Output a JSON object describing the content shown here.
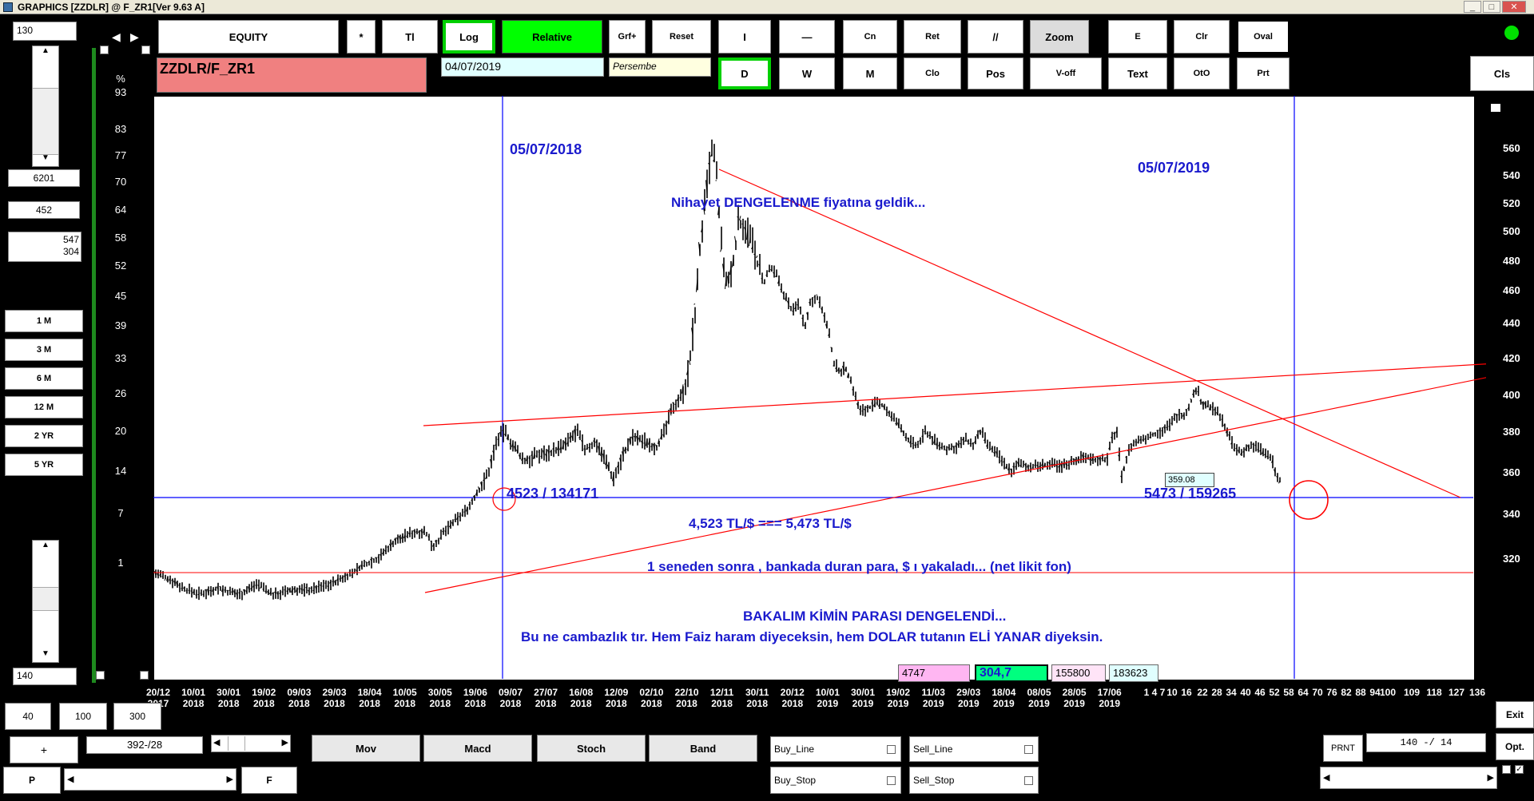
{
  "window": {
    "title": "GRAPHICS  [ZZDLR] @ F_ZR1[Ver 9.63 A]"
  },
  "left_panel": {
    "top_value": "130",
    "bottom_value": "140",
    "field_a": "6201",
    "field_b": "452",
    "field_c1": "547",
    "field_c2": "304",
    "periods": [
      "1 M",
      "3 M",
      "6 M",
      "12 M",
      "2 YR",
      "5 YR"
    ]
  },
  "toolbar": {
    "equity": "EQUITY",
    "star": "*",
    "ti": "Tl",
    "log": "Log",
    "relative": "Relative",
    "grf": "Grf+",
    "reset": "Reset",
    "i": "I",
    "dash": "—",
    "cn": "Cn",
    "ret": "Ret",
    "slash": "//",
    "zoom": "Zoom",
    "e": "E",
    "clr": "Clr",
    "oval": "Oval",
    "d": "D",
    "w": "W",
    "m": "M",
    "clo": "Clo",
    "pos": "Pos",
    "voff": "V-off",
    "text": "Text",
    "oto": "OtO",
    "prt": "Prt",
    "cls": "Cls"
  },
  "symbol": {
    "name": "ZZDLR/F_ZR1",
    "date": "04/07/2019",
    "day": "Persembe"
  },
  "pct_axis": {
    "unit": "%",
    "labels": [
      "93",
      "83",
      "77",
      "70",
      "64",
      "58",
      "52",
      "45",
      "39",
      "33",
      "26",
      "20",
      "14",
      "7",
      "1"
    ]
  },
  "right_axis": [
    "560",
    "540",
    "520",
    "500",
    "480",
    "460",
    "440",
    "420",
    "400",
    "380",
    "360",
    "340",
    "320"
  ],
  "x_axis": [
    [
      "20/12",
      "2017"
    ],
    [
      "10/01",
      "2018"
    ],
    [
      "30/01",
      "2018"
    ],
    [
      "19/02",
      "2018"
    ],
    [
      "09/03",
      "2018"
    ],
    [
      "29/03",
      "2018"
    ],
    [
      "18/04",
      "2018"
    ],
    [
      "10/05",
      "2018"
    ],
    [
      "30/05",
      "2018"
    ],
    [
      "19/06",
      "2018"
    ],
    [
      "09/07",
      "2018"
    ],
    [
      "27/07",
      "2018"
    ],
    [
      "16/08",
      "2018"
    ],
    [
      "12/09",
      "2018"
    ],
    [
      "02/10",
      "2018"
    ],
    [
      "22/10",
      "2018"
    ],
    [
      "12/11",
      "2018"
    ],
    [
      "30/11",
      "2018"
    ],
    [
      "20/12",
      "2018"
    ],
    [
      "10/01",
      "2019"
    ],
    [
      "30/01",
      "2019"
    ],
    [
      "19/02",
      "2019"
    ],
    [
      "11/03",
      "2019"
    ],
    [
      "29/03",
      "2019"
    ],
    [
      "18/04",
      "2019"
    ],
    [
      "08/05",
      "2019"
    ],
    [
      "28/05",
      "2019"
    ],
    [
      "17/06",
      "2019"
    ]
  ],
  "x_axis_tail": [
    "1",
    "4",
    "7",
    "10",
    "16",
    "22",
    "28",
    "34",
    "40",
    "46",
    "52",
    "58",
    "64",
    "70",
    "76",
    "82",
    "88",
    "94",
    "100",
    "109",
    "118",
    "127",
    "136"
  ],
  "annotations": {
    "date_left": "05/07/2018",
    "date_right": "05/07/2019",
    "msg1": "Nihayet  DENGELENME  fiyatına geldik...",
    "left_point": "4523 / 134171",
    "right_point": "5473 / 159265",
    "price_box": "359.08",
    "equation": "4,523 TL/$  ===  5,473  TL/$",
    "msg2": "1 seneden sonra ,  bankada duran para, $ ı yakaladı... (net likit fon)",
    "msg3": "BAKALIM  KİMİN  PARASI  DENGELENDİ...",
    "msg4": "Bu ne cambazlık tır.  Hem Faiz haram diyeceksin, hem DOLAR tutanın ELİ YANAR diyeksin."
  },
  "bottom_boxes": [
    "4747",
    "304,7",
    "155800",
    "183623"
  ],
  "bottom": {
    "b40": "40",
    "b100": "100",
    "b300": "300",
    "plus": "+",
    "pos_label": "392-/28",
    "p": "P",
    "f": "F",
    "mov": "Mov",
    "macd": "Macd",
    "stoch": "Stoch",
    "band": "Band",
    "buy_line": "Buy_Line",
    "sell_line": "Sell_Line",
    "buy_stop": "Buy_Stop",
    "sell_stop": "Sell_Stop",
    "prnt": "PRNT",
    "range": "140 -/ 14",
    "exit": "Exit",
    "opt": "Opt."
  },
  "colors": {
    "candles": "#000000",
    "trend": "#ff0000",
    "guide": "#0000ff",
    "frame": "#1e8a1e"
  }
}
